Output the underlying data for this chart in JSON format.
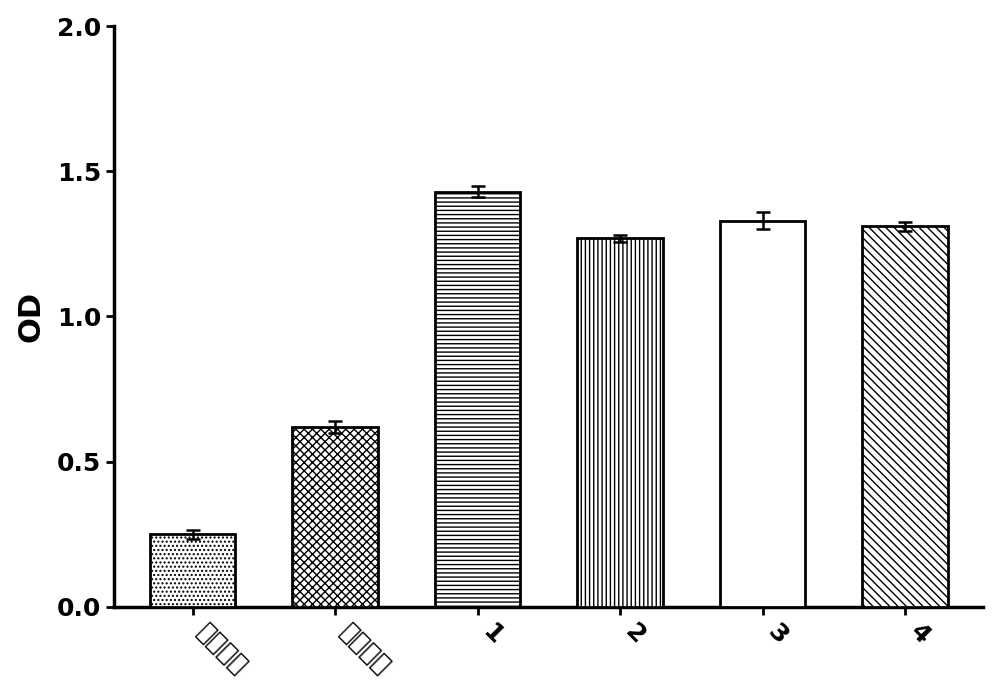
{
  "categories": [
    "空白对照",
    "阴性对照",
    "1",
    "2",
    "3",
    "4"
  ],
  "values": [
    0.25,
    0.62,
    1.43,
    1.27,
    1.33,
    1.31
  ],
  "errors": [
    0.015,
    0.02,
    0.018,
    0.012,
    0.03,
    0.015
  ],
  "bar_facecolor": "white",
  "bar_edgecolor": "black",
  "ylabel": "OD",
  "ylim": [
    0.0,
    2.0
  ],
  "yticks": [
    0.0,
    0.5,
    1.0,
    1.5,
    2.0
  ],
  "background_color": "white",
  "bar_linewidth": 2.0,
  "error_capsize": 5,
  "error_linewidth": 1.8,
  "ylabel_fontsize": 22,
  "tick_fontsize": 18,
  "xlabel_rotation": -45,
  "bar_width": 0.6
}
